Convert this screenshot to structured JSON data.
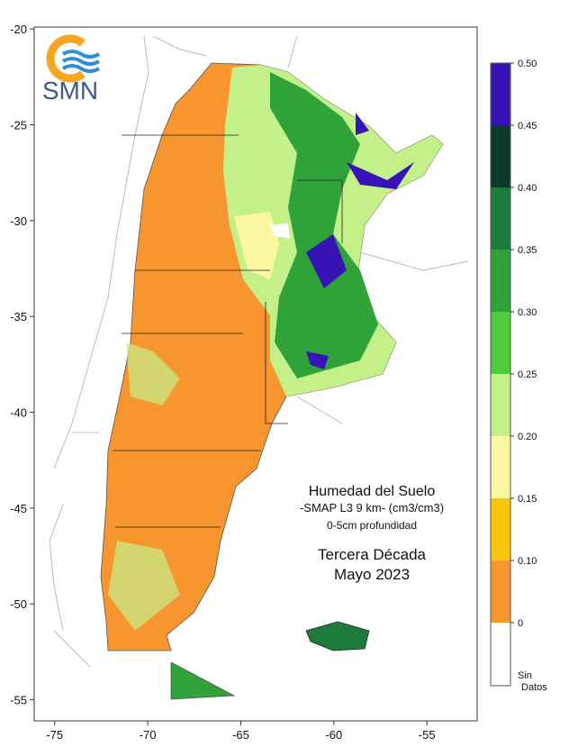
{
  "logo": {
    "text": "SMN"
  },
  "map": {
    "title": "Humedad del Suelo",
    "subtitle": "-SMAP L3 9 km- (cm3/cm3)",
    "depth": "0-5cm profundidad",
    "period": "Tercera Década",
    "date": "Mayo 2023",
    "xlim": [
      -76.1,
      -52.3
    ],
    "ylim": [
      -56.1,
      -19.9
    ],
    "xticks": [
      -75,
      -70,
      -65,
      -60,
      -55
    ],
    "yticks": [
      -20,
      -25,
      -30,
      -35,
      -40,
      -45,
      -50,
      -55
    ]
  },
  "colorbar": {
    "boundaries": [
      0,
      {
        "value": 0.1,
        "label": "0.10"
      },
      {
        "value": 0.15,
        "label": "0.15"
      },
      {
        "value": 0.2,
        "label": "0.20"
      },
      {
        "value": 0.25,
        "label": "0.25"
      },
      {
        "value": 0.3,
        "label": "0.30"
      },
      {
        "value": 0.35,
        "label": "0.35"
      },
      {
        "value": 0.4,
        "label": "0.40"
      },
      {
        "value": 0.45,
        "label": "0.45"
      },
      {
        "value": 0.5,
        "label": "0.50"
      }
    ],
    "colors": [
      "#f7962f",
      "#f8c50c",
      "#fbf7a2",
      "#c4f08a",
      "#4fcc3c",
      "#2fa23a",
      "#1c7a3a",
      "#0d3b2b",
      "#3714b5"
    ],
    "no_data_label": [
      "Sin",
      "Datos"
    ]
  }
}
